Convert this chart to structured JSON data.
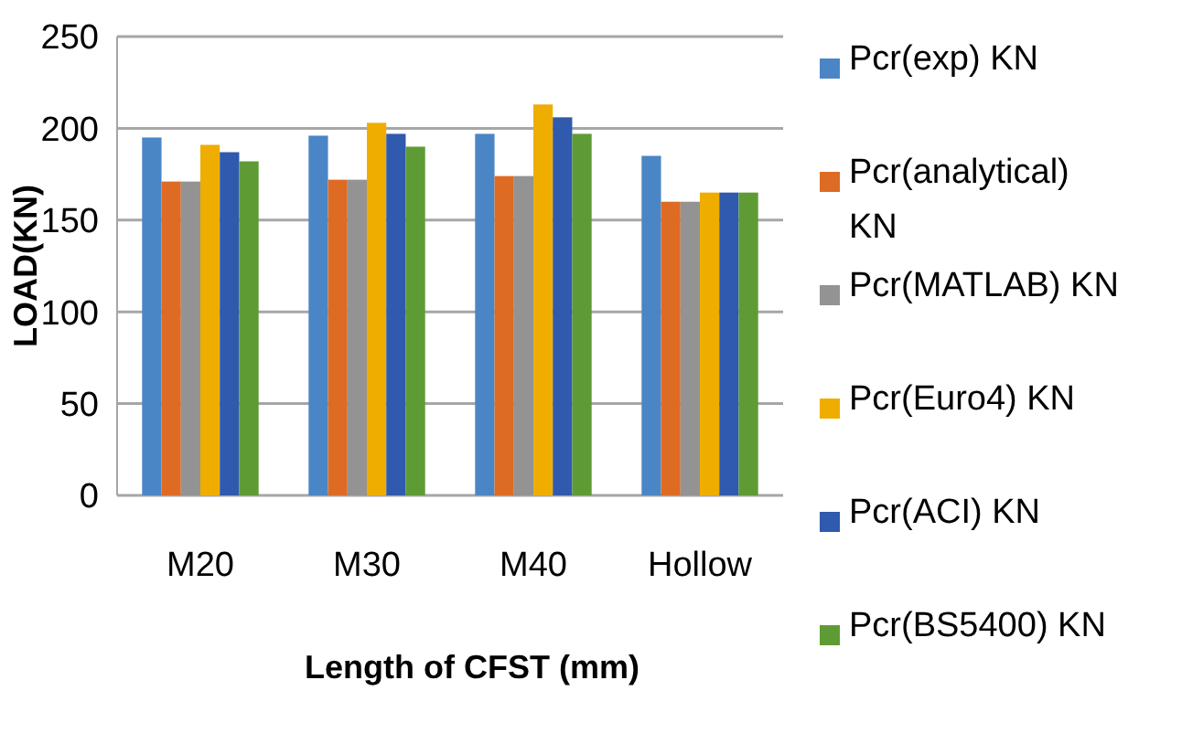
{
  "chart_data": {
    "type": "bar",
    "xlabel": "Length of CFST (mm)",
    "ylabel": "LOAD(KN)",
    "categories": [
      "M20",
      "M30",
      "M40",
      "Hollow"
    ],
    "ylim": [
      0,
      250
    ],
    "yticks": [
      0,
      50,
      100,
      150,
      200,
      250
    ],
    "grid": "y",
    "legend": "right",
    "series": [
      {
        "name": "Pcr(exp) KN",
        "color": "#4a86c5",
        "values": [
          195,
          196,
          197,
          185
        ]
      },
      {
        "name": "Pcr(analytical) KN",
        "color": "#dd6b24",
        "values": [
          171,
          172,
          174,
          160
        ]
      },
      {
        "name": "Pcr(MATLAB) KN",
        "color": "#939393",
        "values": [
          171,
          172,
          174,
          160
        ]
      },
      {
        "name": "Pcr(Euro4) KN",
        "color": "#efad00",
        "values": [
          191,
          203,
          213,
          165
        ]
      },
      {
        "name": "Pcr(ACI) KN",
        "color": "#2f5aad",
        "values": [
          187,
          197,
          206,
          165
        ]
      },
      {
        "name": "Pcr(BS5400) KN",
        "color": "#5f9b35",
        "values": [
          182,
          190,
          197,
          165
        ]
      }
    ]
  }
}
